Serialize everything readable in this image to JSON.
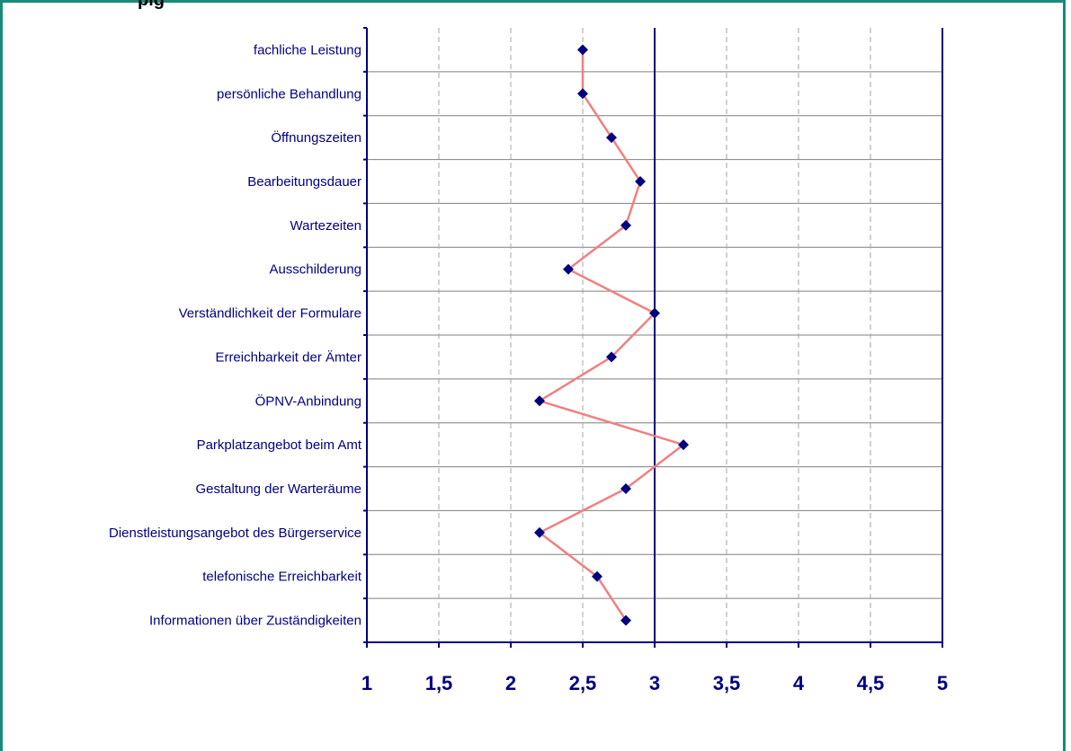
{
  "chart_data": {
    "type": "line",
    "title": "",
    "title_fragment": "pig",
    "categories": [
      "fachliche Leistung",
      "persönliche Behandlung",
      "Öffnungszeiten",
      "Bearbeitungsdauer",
      "Wartezeiten",
      "Ausschilderung",
      "Verständlichkeit der Formulare",
      "Erreichbarkeit der Ämter",
      "ÖPNV-Anbindung",
      "Parkplatzangebot beim Amt",
      "Gestaltung der Warteräume",
      "Dienstleistungsangebot des Bürgerservice",
      "telefonische Erreichbarkeit",
      "Informationen über Zuständigkeiten"
    ],
    "values": [
      2.5,
      2.5,
      2.7,
      2.9,
      2.8,
      2.4,
      3.0,
      2.7,
      2.2,
      3.2,
      2.8,
      2.2,
      2.6,
      2.8
    ],
    "xlim": [
      1,
      5
    ],
    "xticks": [
      "1",
      "1,5",
      "2",
      "2,5",
      "3",
      "3,5",
      "4",
      "4,5",
      "5"
    ],
    "reference_line": 3,
    "grid": true,
    "orientation": "horizontal",
    "colors": {
      "line": "#f08080",
      "marker": "#000080",
      "axis": "#000080",
      "frame": "#1a8a7a"
    }
  }
}
